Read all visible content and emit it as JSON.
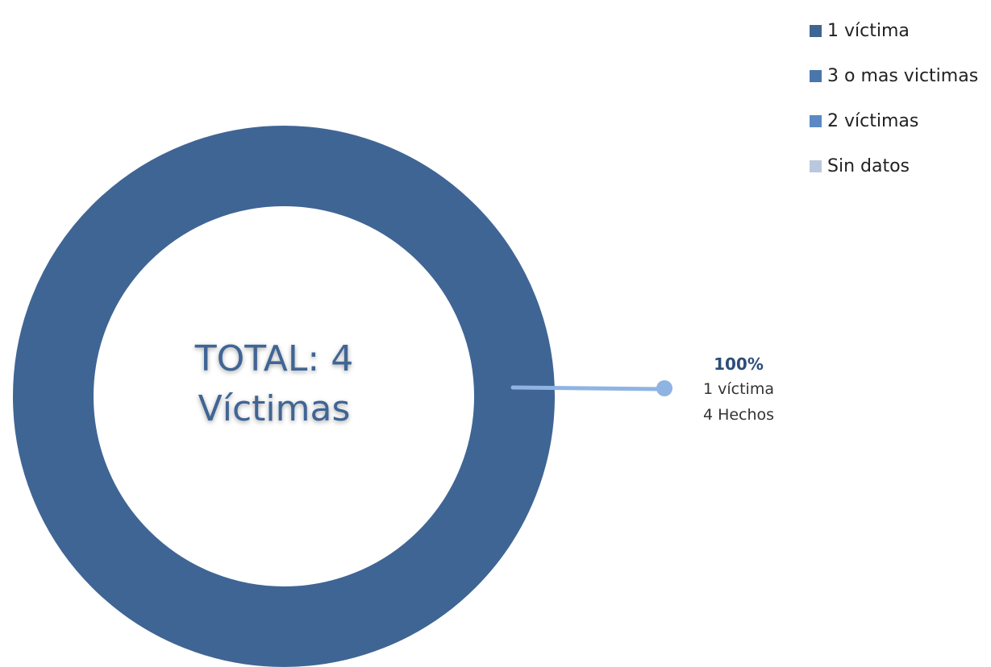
{
  "chart_data": {
    "type": "pie",
    "style": "donut",
    "center_label": [
      "TOTAL: 4",
      "Víctimas"
    ],
    "legend": {
      "placement": "top-right",
      "items": [
        {
          "label": "1 víctima",
          "color": "#3f6594"
        },
        {
          "label": "3 o mas victimas",
          "color": "#4a76ad"
        },
        {
          "label": "2 víctimas",
          "color": "#5b89c4"
        },
        {
          "label": "Sin datos",
          "color": "#b9c8de"
        }
      ]
    },
    "slices": [
      {
        "category": "1 víctima",
        "percent": 100,
        "color": "#3f6594"
      }
    ],
    "callout": {
      "percent_label": "100%",
      "category_label": "1 víctima",
      "count_label": "4 Hechos",
      "line_color": "#8fb4e3"
    }
  }
}
